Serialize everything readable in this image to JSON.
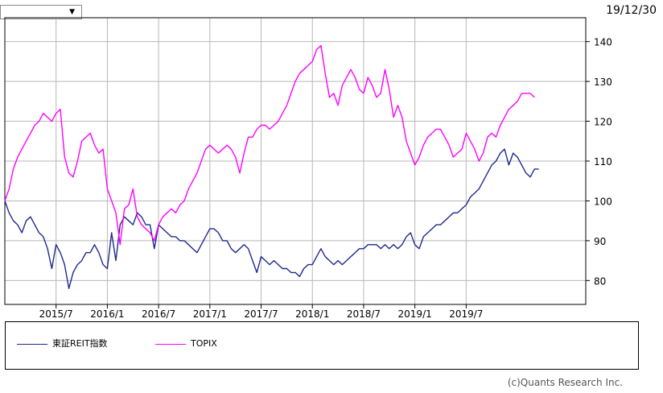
{
  "header": {
    "dropdown_value": "",
    "date_label": "19/12/30"
  },
  "icons": {
    "dropdown": "chevron-down-icon"
  },
  "footer": {
    "copyright": "(c)Quants Research Inc."
  },
  "chart_data": {
    "type": "line",
    "title": "",
    "xlabel": "",
    "ylabel": "",
    "ylim": [
      74,
      146
    ],
    "yticks": [
      80,
      90,
      100,
      110,
      120,
      130,
      140
    ],
    "xticks": [
      "2015/7",
      "2016/1",
      "2016/7",
      "2017/1",
      "2017/7",
      "2018/1",
      "2018/7",
      "2019/1",
      "2019/7"
    ],
    "xtick_positions": [
      6,
      12,
      18,
      24,
      30,
      36,
      42,
      48,
      54
    ],
    "xlim": [
      0,
      68
    ],
    "grid": true,
    "legend_position": "bottom",
    "series": [
      {
        "name": "東証REIT指数",
        "color": "#1f2a8c",
        "points": [
          [
            0,
            100
          ],
          [
            0.5,
            97
          ],
          [
            1,
            95
          ],
          [
            1.5,
            94
          ],
          [
            2,
            92
          ],
          [
            2.5,
            95
          ],
          [
            3,
            96
          ],
          [
            3.5,
            94
          ],
          [
            4,
            92
          ],
          [
            4.5,
            91
          ],
          [
            5,
            88
          ],
          [
            5.5,
            83
          ],
          [
            6,
            89
          ],
          [
            6.5,
            87
          ],
          [
            7,
            84
          ],
          [
            7.5,
            78
          ],
          [
            8,
            82
          ],
          [
            8.5,
            84
          ],
          [
            9,
            85
          ],
          [
            9.5,
            87
          ],
          [
            10,
            87
          ],
          [
            10.5,
            89
          ],
          [
            11,
            87
          ],
          [
            11.5,
            84
          ],
          [
            12,
            83
          ],
          [
            12.5,
            92
          ],
          [
            13,
            85
          ],
          [
            13.5,
            94
          ],
          [
            14,
            96
          ],
          [
            14.5,
            95
          ],
          [
            15,
            94
          ],
          [
            15.5,
            97
          ],
          [
            16,
            96
          ],
          [
            16.5,
            94
          ],
          [
            17,
            94
          ],
          [
            17.5,
            88
          ],
          [
            18,
            94
          ],
          [
            18.5,
            93
          ],
          [
            19,
            92
          ],
          [
            19.5,
            91
          ],
          [
            20,
            91
          ],
          [
            20.5,
            90
          ],
          [
            21,
            90
          ],
          [
            21.5,
            89
          ],
          [
            22,
            88
          ],
          [
            22.5,
            87
          ],
          [
            23,
            89
          ],
          [
            23.5,
            91
          ],
          [
            24,
            93
          ],
          [
            24.5,
            93
          ],
          [
            25,
            92
          ],
          [
            25.5,
            90
          ],
          [
            26,
            90
          ],
          [
            26.5,
            88
          ],
          [
            27,
            87
          ],
          [
            27.5,
            88
          ],
          [
            28,
            89
          ],
          [
            28.5,
            88
          ],
          [
            29,
            85
          ],
          [
            29.5,
            82
          ],
          [
            30,
            86
          ],
          [
            30.5,
            85
          ],
          [
            31,
            84
          ],
          [
            31.5,
            85
          ],
          [
            32,
            84
          ],
          [
            32.5,
            83
          ],
          [
            33,
            83
          ],
          [
            33.5,
            82
          ],
          [
            34,
            82
          ],
          [
            34.5,
            81
          ],
          [
            35,
            83
          ],
          [
            35.5,
            84
          ],
          [
            36,
            84
          ],
          [
            36.5,
            86
          ],
          [
            37,
            88
          ],
          [
            37.5,
            86
          ],
          [
            38,
            85
          ],
          [
            38.5,
            84
          ],
          [
            39,
            85
          ],
          [
            39.5,
            84
          ],
          [
            40,
            85
          ],
          [
            40.5,
            86
          ],
          [
            41,
            87
          ],
          [
            41.5,
            88
          ],
          [
            42,
            88
          ],
          [
            42.5,
            89
          ],
          [
            43,
            89
          ],
          [
            43.5,
            89
          ],
          [
            44,
            88
          ],
          [
            44.5,
            89
          ],
          [
            45,
            88
          ],
          [
            45.5,
            89
          ],
          [
            46,
            88
          ],
          [
            46.5,
            89
          ],
          [
            47,
            91
          ],
          [
            47.5,
            92
          ],
          [
            48,
            89
          ],
          [
            48.5,
            88
          ],
          [
            49,
            91
          ],
          [
            49.5,
            92
          ],
          [
            50,
            93
          ],
          [
            50.5,
            94
          ],
          [
            51,
            94
          ],
          [
            51.5,
            95
          ],
          [
            52,
            96
          ],
          [
            52.5,
            97
          ],
          [
            53,
            97
          ],
          [
            53.5,
            98
          ],
          [
            54,
            99
          ],
          [
            54.5,
            101
          ],
          [
            55,
            102
          ],
          [
            55.5,
            103
          ],
          [
            56,
            105
          ],
          [
            56.5,
            107
          ],
          [
            57,
            109
          ],
          [
            57.5,
            110
          ],
          [
            58,
            112
          ],
          [
            58.5,
            113
          ],
          [
            59,
            109
          ],
          [
            59.5,
            112
          ],
          [
            60,
            111
          ],
          [
            60.5,
            109
          ],
          [
            61,
            107
          ],
          [
            61.5,
            106
          ],
          [
            62,
            108
          ],
          [
            62.5,
            108
          ]
        ]
      },
      {
        "name": "TOPIX",
        "color": "#ff00ff",
        "points": [
          [
            0,
            100
          ],
          [
            0.5,
            103
          ],
          [
            1,
            108
          ],
          [
            1.5,
            111
          ],
          [
            2,
            113
          ],
          [
            2.5,
            115
          ],
          [
            3,
            117
          ],
          [
            3.5,
            119
          ],
          [
            4,
            120
          ],
          [
            4.5,
            122
          ],
          [
            5,
            121
          ],
          [
            5.5,
            120
          ],
          [
            6,
            122
          ],
          [
            6.5,
            123
          ],
          [
            7,
            111
          ],
          [
            7.5,
            107
          ],
          [
            8,
            106
          ],
          [
            8.5,
            110
          ],
          [
            9,
            115
          ],
          [
            9.5,
            116
          ],
          [
            10,
            117
          ],
          [
            10.5,
            114
          ],
          [
            11,
            112
          ],
          [
            11.5,
            113
          ],
          [
            12,
            103
          ],
          [
            12.5,
            100
          ],
          [
            13,
            97
          ],
          [
            13.5,
            89
          ],
          [
            14,
            98
          ],
          [
            14.5,
            99
          ],
          [
            15,
            103
          ],
          [
            15.5,
            96
          ],
          [
            16,
            94
          ],
          [
            16.5,
            93
          ],
          [
            17,
            92
          ],
          [
            17.5,
            90
          ],
          [
            18,
            94
          ],
          [
            18.5,
            96
          ],
          [
            19,
            97
          ],
          [
            19.5,
            98
          ],
          [
            20,
            97
          ],
          [
            20.5,
            99
          ],
          [
            21,
            100
          ],
          [
            21.5,
            103
          ],
          [
            22,
            105
          ],
          [
            22.5,
            107
          ],
          [
            23,
            110
          ],
          [
            23.5,
            113
          ],
          [
            24,
            114
          ],
          [
            24.5,
            113
          ],
          [
            25,
            112
          ],
          [
            25.5,
            113
          ],
          [
            26,
            114
          ],
          [
            26.5,
            113
          ],
          [
            27,
            111
          ],
          [
            27.5,
            107
          ],
          [
            28,
            112
          ],
          [
            28.5,
            116
          ],
          [
            29,
            116
          ],
          [
            29.5,
            118
          ],
          [
            30,
            119
          ],
          [
            30.5,
            119
          ],
          [
            31,
            118
          ],
          [
            31.5,
            119
          ],
          [
            32,
            120
          ],
          [
            32.5,
            122
          ],
          [
            33,
            124
          ],
          [
            33.5,
            127
          ],
          [
            34,
            130
          ],
          [
            34.5,
            132
          ],
          [
            35,
            133
          ],
          [
            35.5,
            134
          ],
          [
            36,
            135
          ],
          [
            36.5,
            138
          ],
          [
            37,
            139
          ],
          [
            37.5,
            132
          ],
          [
            38,
            126
          ],
          [
            38.5,
            127
          ],
          [
            39,
            124
          ],
          [
            39.5,
            129
          ],
          [
            40,
            131
          ],
          [
            40.5,
            133
          ],
          [
            41,
            131
          ],
          [
            41.5,
            128
          ],
          [
            42,
            127
          ],
          [
            42.5,
            131
          ],
          [
            43,
            129
          ],
          [
            43.5,
            126
          ],
          [
            44,
            127
          ],
          [
            44.5,
            133
          ],
          [
            45,
            128
          ],
          [
            45.5,
            121
          ],
          [
            46,
            124
          ],
          [
            46.5,
            121
          ],
          [
            47,
            115
          ],
          [
            47.5,
            112
          ],
          [
            48,
            109
          ],
          [
            48.5,
            111
          ],
          [
            49,
            114
          ],
          [
            49.5,
            116
          ],
          [
            50,
            117
          ],
          [
            50.5,
            118
          ],
          [
            51,
            118
          ],
          [
            51.5,
            116
          ],
          [
            52,
            114
          ],
          [
            52.5,
            111
          ],
          [
            53,
            112
          ],
          [
            53.5,
            113
          ],
          [
            54,
            117
          ],
          [
            54.5,
            115
          ],
          [
            55,
            113
          ],
          [
            55.5,
            110
          ],
          [
            56,
            112
          ],
          [
            56.5,
            116
          ],
          [
            57,
            117
          ],
          [
            57.5,
            116
          ],
          [
            58,
            119
          ],
          [
            58.5,
            121
          ],
          [
            59,
            123
          ],
          [
            59.5,
            124
          ],
          [
            60,
            125
          ],
          [
            60.5,
            127
          ],
          [
            61,
            127
          ],
          [
            61.5,
            127
          ],
          [
            62,
            126
          ]
        ]
      }
    ]
  }
}
